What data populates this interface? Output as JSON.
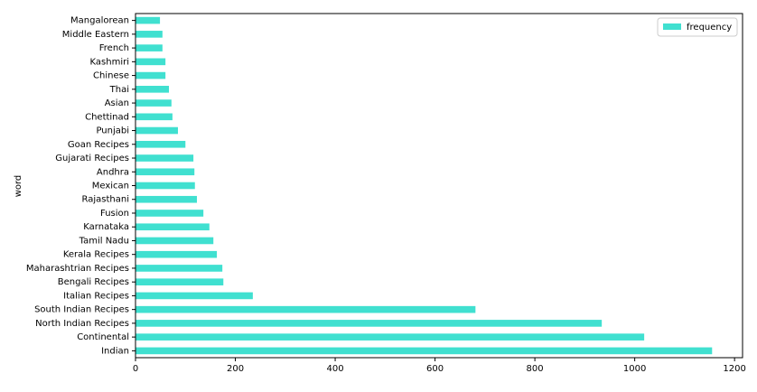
{
  "chart_data": {
    "type": "barh",
    "ylabel": "word",
    "categories": [
      "Indian",
      "Continental",
      "North Indian Recipes",
      "South Indian Recipes",
      "Italian Recipes",
      "Bengali Recipes",
      "Maharashtrian Recipes",
      "Kerala Recipes",
      "Tamil Nadu",
      "Karnataka",
      "Fusion",
      "Rajasthani",
      "Mexican",
      "Andhra",
      "Gujarati Recipes",
      "Goan Recipes",
      "Punjabi",
      "Chettinad",
      "Asian",
      "Thai",
      "Chinese",
      "Kashmiri",
      "French",
      "Middle Eastern",
      "Mangalorean"
    ],
    "series": [
      {
        "name": "frequency",
        "color": "#40e0d0",
        "values": [
          1155,
          1019,
          934,
          681,
          235,
          176,
          174,
          163,
          156,
          148,
          136,
          123,
          119,
          118,
          116,
          100,
          85,
          74,
          72,
          67,
          60,
          60,
          54,
          54,
          49
        ]
      }
    ],
    "xlim": [
      0,
      1216
    ],
    "xticks": [
      0,
      200,
      400,
      600,
      800,
      1000,
      1200
    ],
    "legend": "upper right"
  }
}
